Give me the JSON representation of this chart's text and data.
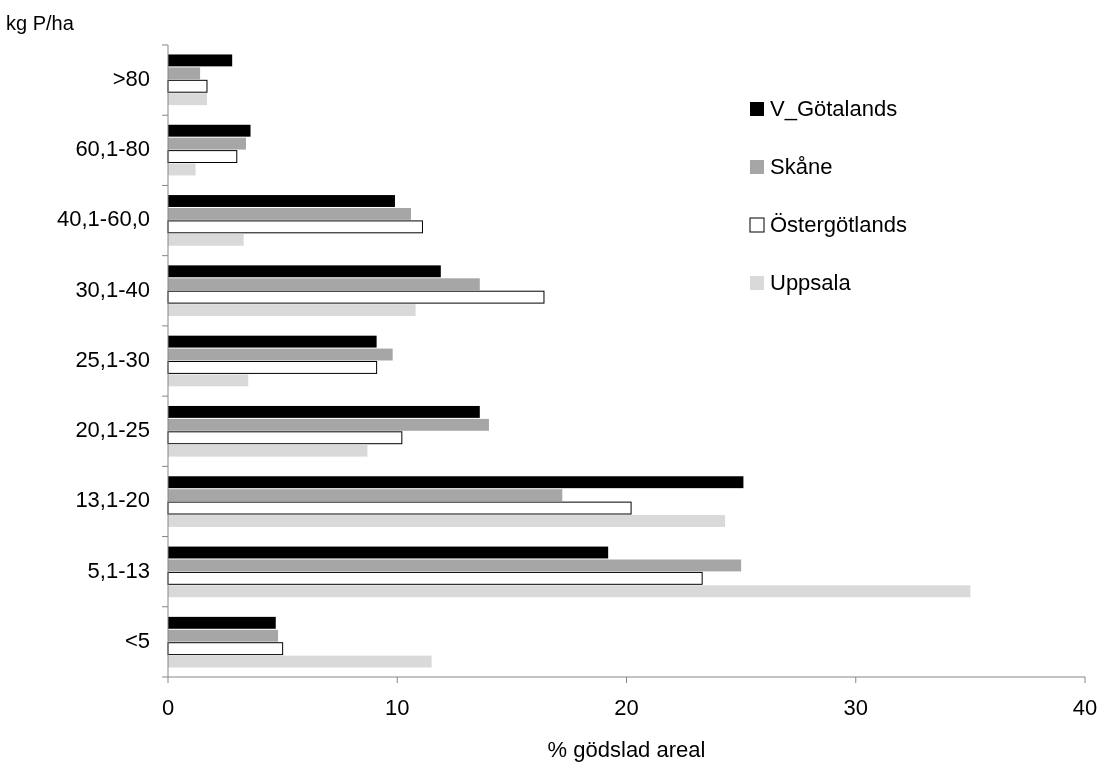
{
  "chart_data": {
    "type": "bar",
    "orientation": "horizontal",
    "ylabel": "kg P/ha",
    "xlabel": "% gödslad areal",
    "categories": [
      ">80",
      "60,1-80",
      "40,1-60,0",
      "30,1-40",
      "25,1-30",
      "20,1-25",
      "13,1-20",
      "5,1-13",
      "<5"
    ],
    "series": [
      {
        "name": "V_Götalands",
        "color": "#000000",
        "values": [
          2.8,
          3.6,
          9.9,
          11.9,
          9.1,
          13.6,
          25.1,
          19.2,
          4.7
        ]
      },
      {
        "name": "Skåne",
        "color": "#a6a6a6",
        "values": [
          1.4,
          3.4,
          10.6,
          13.6,
          9.8,
          14.0,
          17.2,
          25.0,
          4.8
        ]
      },
      {
        "name": "Östergötlands",
        "color": "#ffffff",
        "values": [
          1.7,
          3.0,
          11.1,
          16.4,
          9.1,
          10.2,
          20.2,
          23.3,
          5.0
        ]
      },
      {
        "name": "Uppsala",
        "color": "#d9d9d9",
        "values": [
          1.7,
          1.2,
          3.3,
          10.8,
          3.5,
          8.7,
          24.3,
          35.0,
          11.5
        ]
      }
    ],
    "xlim": [
      0,
      40
    ],
    "xticks": [
      0,
      10,
      20,
      30,
      40
    ],
    "grid": false,
    "legend": "top right"
  }
}
